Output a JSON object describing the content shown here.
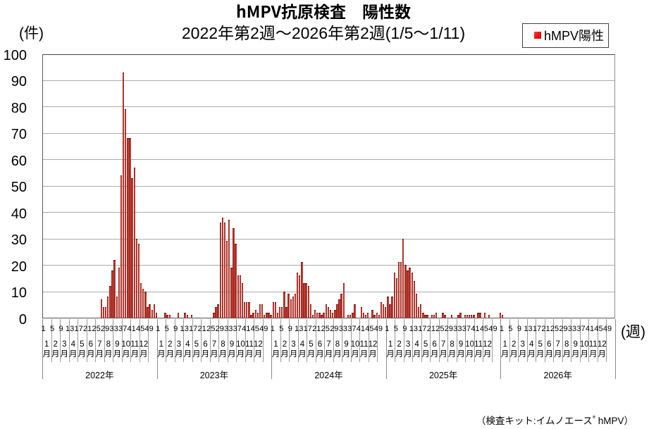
{
  "chart_data": {
    "type": "bar",
    "title": "hMPV抗原検査　陽性数",
    "subtitle": "2022年第2週～2026年第2週(1/5～1/11)",
    "y_unit_label": "(件)",
    "x_unit_label": "(週)",
    "legend": {
      "label": "hMPV陽性",
      "marker_color": "#e8130c"
    },
    "footnote": {
      "prefix": "（検査キット:イムノエース",
      "reg_mark": "®",
      "suffix": "  hMPV）"
    },
    "ylim": [
      0,
      100
    ],
    "ytick_step": 10,
    "grid": true,
    "legend_position": "top-right",
    "bar_color": "#a22820",
    "bar_color_edge": "#c65a51",
    "xlabel": "週",
    "ylabel": "件",
    "week_tick_labels": [
      1,
      5,
      9,
      13,
      17,
      21,
      25,
      29,
      33,
      37,
      41,
      45,
      49
    ],
    "month_suffix": "月",
    "month_numbers": [
      "1",
      "2",
      "3",
      "4",
      "5",
      "6",
      "7",
      "8",
      "9",
      "10",
      "11",
      "12"
    ],
    "years": [
      {
        "label": "2022年",
        "weekly_values": [
          0,
          0,
          0,
          0,
          0,
          0,
          0,
          0,
          0,
          0,
          0,
          0,
          0,
          0,
          0,
          0,
          0,
          0,
          0,
          0,
          0,
          0,
          0,
          0,
          0,
          0,
          7,
          4,
          4,
          8,
          12,
          18,
          22,
          8,
          19,
          54,
          93,
          79,
          68,
          68,
          53,
          57,
          30,
          28,
          13,
          11,
          10,
          4,
          5,
          3,
          5,
          2
        ]
      },
      {
        "label": "2023年",
        "weekly_values": [
          0,
          0,
          0,
          2,
          1,
          1,
          0,
          0,
          0,
          2,
          0,
          0,
          2,
          1,
          0,
          1,
          0,
          0,
          0,
          0,
          0,
          0,
          0,
          0,
          0,
          2,
          4,
          5,
          36,
          38,
          36,
          29,
          37,
          19,
          34,
          28,
          16,
          16,
          13,
          6,
          6,
          6,
          1,
          2,
          3,
          2,
          5,
          5,
          1,
          2,
          2,
          1
        ]
      },
      {
        "label": "2024年",
        "weekly_values": [
          6,
          6,
          2,
          4,
          4,
          10,
          4,
          9,
          7,
          8,
          9,
          17,
          16,
          21,
          13,
          13,
          12,
          5,
          1,
          3,
          2,
          2,
          1,
          2,
          5,
          4,
          3,
          2,
          3,
          5,
          7,
          9,
          13,
          0,
          1,
          1,
          2,
          5,
          0,
          0,
          4,
          2,
          1,
          2,
          0,
          3,
          1,
          2,
          1,
          6,
          5,
          4
        ]
      },
      {
        "label": "2025年",
        "weekly_values": [
          8,
          5,
          8,
          17,
          15,
          21,
          21,
          30,
          20,
          18,
          19,
          17,
          14,
          9,
          4,
          5,
          2,
          1,
          1,
          0,
          1,
          1,
          2,
          0,
          0,
          2,
          1,
          0,
          0,
          1,
          0,
          0,
          1,
          2,
          0,
          1,
          1,
          1,
          1,
          1,
          0,
          2,
          2,
          0,
          2,
          0,
          1,
          0,
          0,
          0,
          0,
          2
        ]
      },
      {
        "label": "2026年",
        "weekly_values": [
          1,
          0
        ]
      }
    ]
  }
}
